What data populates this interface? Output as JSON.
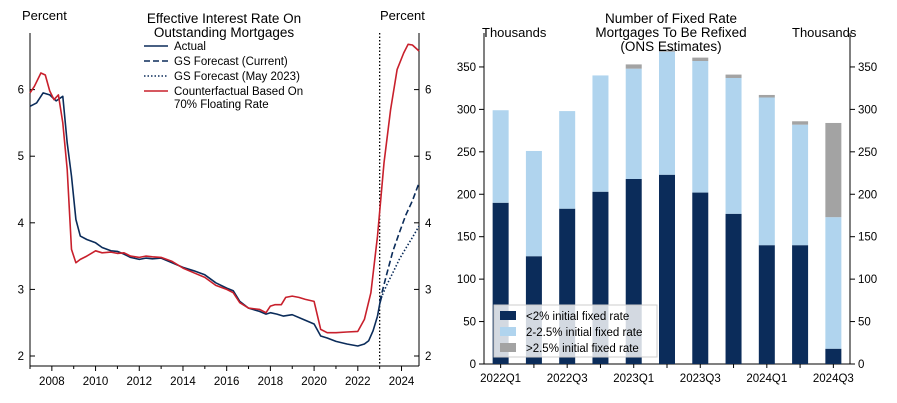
{
  "chart_data": [
    {
      "type": "line",
      "title": "Effective Interest Rate On Outstanding Mortgages",
      "title_lines": [
        "Effective Interest Rate On",
        "Outstanding Mortgages"
      ],
      "ylabel_left": "Percent",
      "ylabel_right": "Percent",
      "xlim": [
        2007.0,
        2024.8
      ],
      "ylim": [
        1.85,
        6.85
      ],
      "xticks": [
        2008,
        2010,
        2012,
        2014,
        2016,
        2018,
        2020,
        2022,
        2024
      ],
      "yticks": [
        2,
        3,
        4,
        5,
        6
      ],
      "forecast_start": 2023.0,
      "colors": {
        "actual": "#0b2c5a",
        "counterfactual": "#c8202c",
        "vline": "#000000"
      },
      "legend": [
        "Actual",
        "GS Forecast (Current)",
        "GS Forecast (May 2023)",
        "Counterfactual Based On 70% Floating Rate"
      ],
      "legend_lines": [
        [
          "Actual"
        ],
        [
          "GS Forecast (Current)"
        ],
        [
          "GS Forecast (May 2023)"
        ],
        [
          "Counterfactual Based On",
          "70% Floating Rate"
        ]
      ],
      "series": [
        {
          "name": "Actual",
          "style": "solid",
          "color": "#0b2c5a",
          "x": [
            2007.0,
            2007.3,
            2007.6,
            2007.9,
            2008.2,
            2008.5,
            2008.7,
            2008.9,
            2009.1,
            2009.3,
            2009.6,
            2010.0,
            2010.3,
            2010.7,
            2011.0,
            2011.3,
            2011.6,
            2012.0,
            2012.3,
            2012.6,
            2013.0,
            2013.5,
            2014.0,
            2014.5,
            2015.0,
            2015.5,
            2016.0,
            2016.3,
            2016.6,
            2017.0,
            2017.5,
            2017.8,
            2018.0,
            2018.3,
            2018.6,
            2019.0,
            2019.5,
            2020.0,
            2020.3,
            2020.6,
            2021.0,
            2021.5,
            2022.0,
            2022.3,
            2022.5,
            2022.7,
            2022.9
          ],
          "y": [
            5.75,
            5.8,
            5.95,
            5.92,
            5.83,
            5.9,
            5.2,
            4.7,
            4.05,
            3.8,
            3.75,
            3.7,
            3.63,
            3.58,
            3.57,
            3.53,
            3.48,
            3.45,
            3.47,
            3.46,
            3.47,
            3.4,
            3.33,
            3.28,
            3.22,
            3.1,
            3.02,
            2.98,
            2.82,
            2.72,
            2.67,
            2.63,
            2.65,
            2.63,
            2.6,
            2.62,
            2.55,
            2.48,
            2.3,
            2.27,
            2.22,
            2.18,
            2.15,
            2.18,
            2.23,
            2.38,
            2.6
          ]
        },
        {
          "name": "Actual (forecast segment)",
          "style": "solid",
          "color": "#0b2c5a",
          "x": [
            2022.9,
            2023.0,
            2023.1
          ],
          "y": [
            2.6,
            2.78,
            2.9
          ]
        },
        {
          "name": "GS Forecast (Current)",
          "style": "dashed",
          "color": "#0b2c5a",
          "x": [
            2023.0,
            2023.3,
            2023.6,
            2023.9,
            2024.2,
            2024.5,
            2024.8
          ],
          "y": [
            2.82,
            3.2,
            3.57,
            3.85,
            4.12,
            4.33,
            4.6
          ]
        },
        {
          "name": "GS Forecast (May 2023)",
          "style": "dotted",
          "color": "#0b2c5a",
          "x": [
            2023.0,
            2023.3,
            2023.6,
            2023.9,
            2024.2,
            2024.5,
            2024.8
          ],
          "y": [
            2.82,
            3.05,
            3.25,
            3.45,
            3.62,
            3.78,
            3.95
          ]
        },
        {
          "name": "Counterfactual Based On 70% Floating Rate",
          "style": "solid",
          "color": "#c8202c",
          "x": [
            2007.0,
            2007.2,
            2007.5,
            2007.7,
            2007.9,
            2008.1,
            2008.3,
            2008.5,
            2008.7,
            2008.9,
            2009.1,
            2009.3,
            2009.6,
            2010.0,
            2010.3,
            2010.7,
            2011.0,
            2011.3,
            2011.6,
            2012.0,
            2012.3,
            2012.6,
            2013.0,
            2013.5,
            2014.0,
            2014.5,
            2015.0,
            2015.5,
            2016.0,
            2016.3,
            2016.6,
            2017.0,
            2017.5,
            2017.8,
            2018.0,
            2018.2,
            2018.5,
            2018.7,
            2019.0,
            2019.3,
            2019.6,
            2020.0,
            2020.3,
            2020.6,
            2021.0,
            2021.5,
            2022.0,
            2022.3,
            2022.6,
            2022.9,
            2023.2,
            2023.5,
            2023.8,
            2024.1,
            2024.3,
            2024.5,
            2024.8
          ],
          "y": [
            5.95,
            6.05,
            6.25,
            6.22,
            5.98,
            5.85,
            5.92,
            5.5,
            4.8,
            3.6,
            3.4,
            3.45,
            3.5,
            3.58,
            3.55,
            3.56,
            3.54,
            3.55,
            3.5,
            3.48,
            3.5,
            3.49,
            3.48,
            3.42,
            3.32,
            3.25,
            3.18,
            3.06,
            3.0,
            2.95,
            2.8,
            2.72,
            2.7,
            2.65,
            2.75,
            2.77,
            2.77,
            2.88,
            2.9,
            2.88,
            2.85,
            2.82,
            2.4,
            2.35,
            2.35,
            2.36,
            2.37,
            2.55,
            2.95,
            3.8,
            4.9,
            5.7,
            6.3,
            6.55,
            6.68,
            6.67,
            6.58
          ]
        }
      ]
    },
    {
      "type": "bar",
      "stacked": true,
      "title": "Number of Fixed Rate Mortgages To Be Refixed (ONS Estimates)",
      "title_lines": [
        "Number of Fixed Rate",
        "Mortgages To Be Refixed",
        "(ONS Estimates)"
      ],
      "ylabel_left": "Thousands",
      "ylabel_right": "Thousands",
      "ylim": [
        0,
        390
      ],
      "yticks": [
        0,
        50,
        100,
        150,
        200,
        250,
        300,
        350
      ],
      "categories": [
        "2022Q1",
        "2022Q2",
        "2022Q3",
        "2022Q4",
        "2023Q1",
        "2023Q2",
        "2023Q3",
        "2023Q4",
        "2024Q1",
        "2024Q2",
        "2024Q3"
      ],
      "x_tick_labels": [
        "2022Q1",
        "",
        "2022Q3",
        "",
        "2023Q1",
        "",
        "2023Q3",
        "",
        "2024Q1",
        "",
        "2024Q3"
      ],
      "series": [
        {
          "name": "<2% initial fixed rate",
          "color": "#0b2c5a",
          "values": [
            190,
            127,
            183,
            203,
            218,
            223,
            202,
            177,
            140,
            140,
            18
          ]
        },
        {
          "name": "2-2.5% initial fixed rate",
          "color": "#b0d4ee",
          "values": [
            109,
            124,
            115,
            137,
            130,
            145,
            155,
            160,
            174,
            142,
            155
          ]
        },
        {
          "name": ">2.5% initial fixed rate",
          "color": "#a3a3a3",
          "values": [
            0,
            0,
            0,
            0,
            5,
            3,
            4,
            4,
            3,
            4,
            111
          ]
        }
      ],
      "legend": [
        "<2% initial fixed rate",
        "2-2.5% initial fixed rate",
        ">2.5% initial fixed rate"
      ]
    }
  ]
}
